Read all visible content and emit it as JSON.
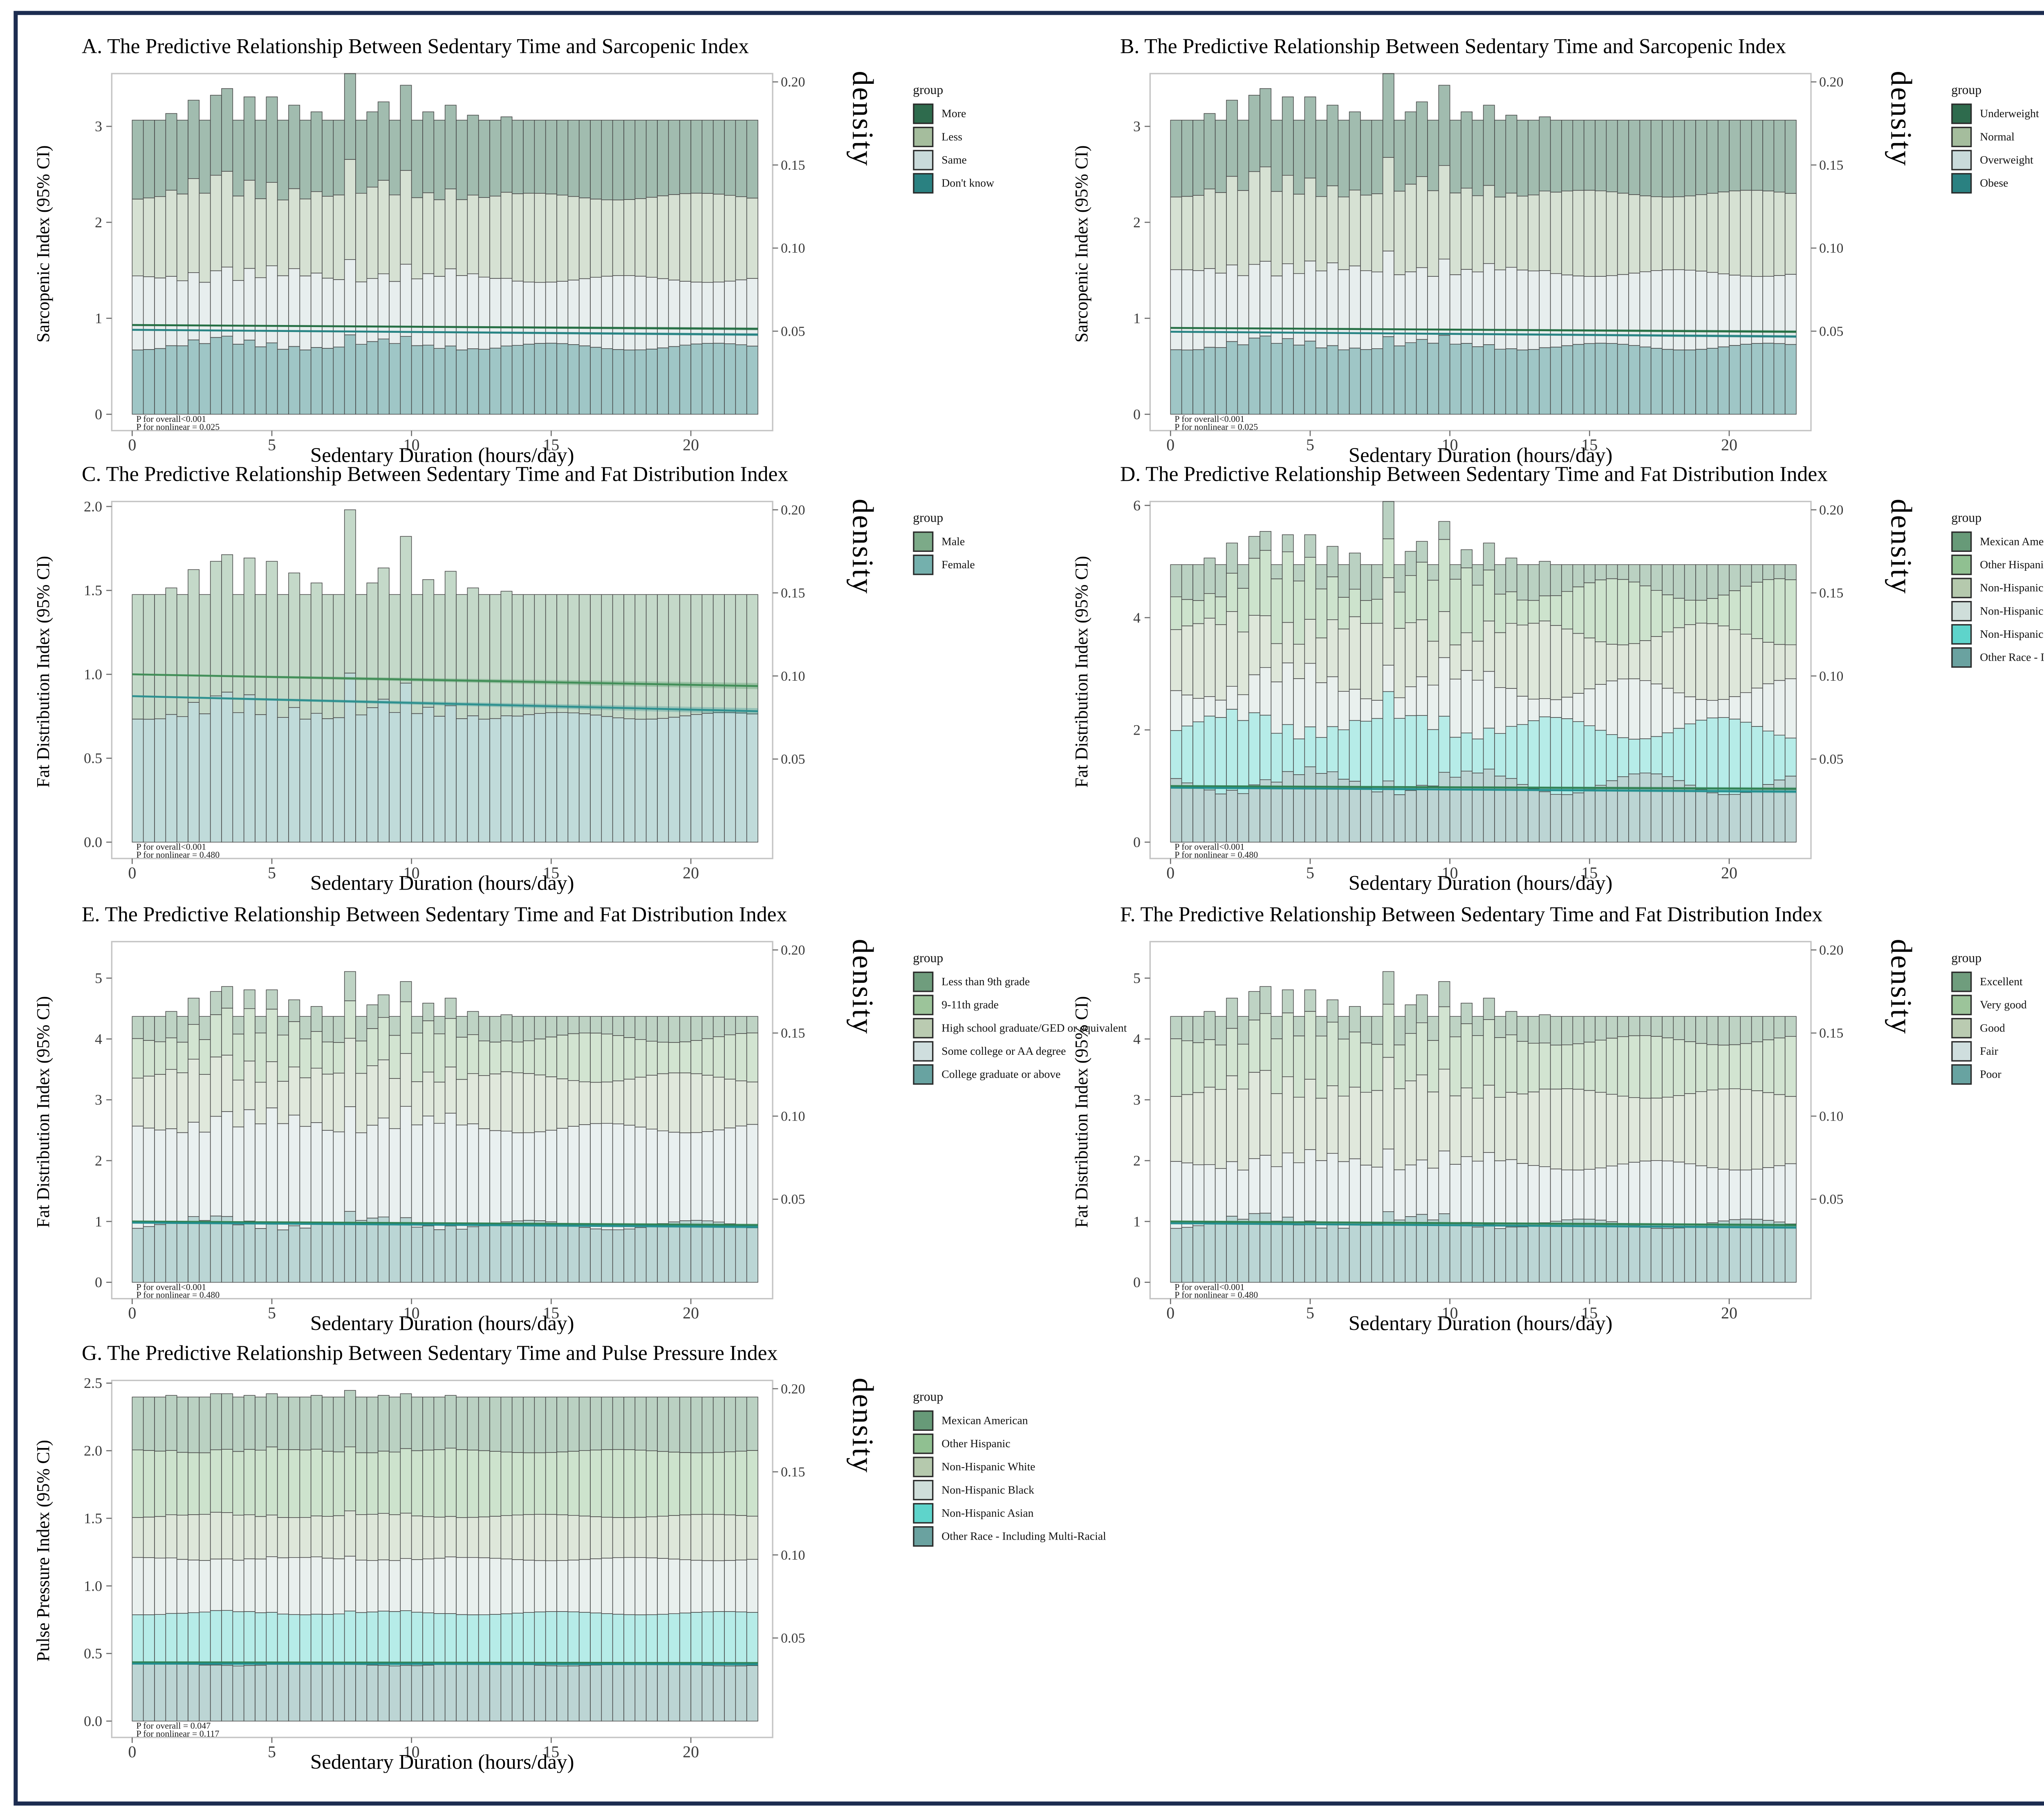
{
  "page": {
    "border_color": "#1c2c50",
    "background": "#ffffff"
  },
  "axis": {
    "x_label": "Sedentary Duration (hours/day)",
    "density_label": "density",
    "legend_title": "group",
    "x_ticks": [
      0,
      5,
      10,
      15,
      20
    ],
    "density_ticks": [
      0.05,
      0.1,
      0.15,
      0.2
    ],
    "x_max_hours": 22.4,
    "density_top": 0.205
  },
  "chart_data": {
    "type": "stacked-histogram-with-trend-lines",
    "panels": [
      {
        "id": "A",
        "grid": {
          "row": 0,
          "col": 0
        },
        "title": "A. The Predictive Relationship Between Sedentary Time and Sarcopenic Index",
        "y_label": "Sarcopenic Index (95% CI)",
        "y_ticks": [
          3,
          2,
          1,
          0
        ],
        "y_decimals": 0,
        "y_max": 3.55,
        "p_overall": "P for overall<0.001",
        "p_nonlinear": "P for nonlinear = 0.025",
        "groups": [
          {
            "label": "More",
            "color": "#2e6b4d"
          },
          {
            "label": "Less",
            "color": "#a5bd9d"
          },
          {
            "label": "Same",
            "color": "#c9dada"
          },
          {
            "label": "Don't know",
            "color": "#2a8181"
          }
        ],
        "stack_fractions": [
          0.26,
          0.28,
          0.23,
          0.23
        ],
        "bars": {
          "base": 0.177,
          "overrides": {
            "3": 0.181,
            "5": 0.189,
            "7": 0.192,
            "8": 0.196,
            "10": 0.191,
            "12": 0.191,
            "14": 0.186,
            "16": 0.182,
            "19": 0.205,
            "21": 0.182,
            "22": 0.188,
            "24": 0.198,
            "26": 0.182,
            "28": 0.186,
            "30": 0.18,
            "33": 0.179
          }
        },
        "jitter": 2.5,
        "seed": 1,
        "trend_lines": [
          {
            "group": "More",
            "color": "#1e6b3e",
            "y_start": 0.93,
            "y_end": 0.89,
            "band_start": 0.8,
            "band_end": 2.2
          },
          {
            "group": "Don't know",
            "color": "#1f8080",
            "y_start": 0.88,
            "y_end": 0.83,
            "band_start": 0.8,
            "band_end": 2.2
          }
        ]
      },
      {
        "id": "B",
        "grid": {
          "row": 0,
          "col": 1
        },
        "title": "B. The Predictive Relationship Between Sedentary Time and Sarcopenic Index",
        "y_label": "Sarcopenic Index (95% CI)",
        "y_ticks": [
          3,
          2,
          1,
          0
        ],
        "y_decimals": 0,
        "y_max": 3.55,
        "p_overall": "P for overall<0.001",
        "p_nonlinear": "P for nonlinear = 0.025",
        "groups": [
          {
            "label": "Underweight",
            "color": "#2e6b4d"
          },
          {
            "label": "Normal",
            "color": "#a5bd9d"
          },
          {
            "label": "Overweight",
            "color": "#c9dada"
          },
          {
            "label": "Obese",
            "color": "#2a8181"
          }
        ],
        "stack_fractions": [
          0.25,
          0.27,
          0.25,
          0.23
        ],
        "bars": {
          "base": 0.177,
          "overrides": {
            "3": 0.181,
            "5": 0.189,
            "7": 0.192,
            "8": 0.196,
            "10": 0.191,
            "12": 0.191,
            "14": 0.186,
            "16": 0.182,
            "19": 0.205,
            "21": 0.182,
            "22": 0.188,
            "24": 0.198,
            "26": 0.182,
            "28": 0.186,
            "30": 0.18,
            "33": 0.179
          }
        },
        "jitter": 2.5,
        "seed": 2,
        "trend_lines": [
          {
            "group": "Underweight",
            "color": "#1e6b3e",
            "y_start": 0.9,
            "y_end": 0.86,
            "band_start": 0.8,
            "band_end": 2.2
          },
          {
            "group": "Obese",
            "color": "#1f8080",
            "y_start": 0.86,
            "y_end": 0.81,
            "band_start": 0.8,
            "band_end": 2.2
          }
        ]
      },
      {
        "id": "C",
        "grid": {
          "row": 1,
          "col": 0
        },
        "title": "C. The Predictive Relationship Between Sedentary Time and Fat Distribution Index",
        "y_label": "Fat Distribution Index (95% CI)",
        "y_ticks": [
          2.0,
          1.5,
          1.0,
          0.5,
          0.0
        ],
        "y_decimals": 1,
        "y_max": 2.03,
        "p_overall": "P for overall<0.001",
        "p_nonlinear": "P for nonlinear = 0.480",
        "groups": [
          {
            "label": "Male",
            "color": "#7caa88"
          },
          {
            "label": "Female",
            "color": "#74b0ad"
          }
        ],
        "stack_fractions": [
          0.49,
          0.51
        ],
        "bars": {
          "base": 0.149,
          "overrides": {
            "3": 0.153,
            "5": 0.164,
            "7": 0.169,
            "8": 0.173,
            "10": 0.171,
            "12": 0.169,
            "14": 0.162,
            "16": 0.156,
            "19": 0.2,
            "21": 0.156,
            "22": 0.165,
            "24": 0.184,
            "26": 0.158,
            "28": 0.163,
            "30": 0.153,
            "33": 0.151
          }
        },
        "jitter": 2.5,
        "seed": 3,
        "trend_lines": [
          {
            "group": "Male",
            "color": "#3f8d55",
            "y_start": 1.0,
            "y_end": 0.93,
            "band_start": 1.0,
            "band_end": 4.5
          },
          {
            "group": "Female",
            "color": "#2a8f8e",
            "y_start": 0.87,
            "y_end": 0.78,
            "band_start": 1.0,
            "band_end": 4.5
          }
        ]
      },
      {
        "id": "D",
        "grid": {
          "row": 1,
          "col": 1
        },
        "title": "D. The Predictive Relationship Between Sedentary Time and Fat Distribution Index",
        "y_label": "Fat Distribution Index (95% CI)",
        "y_ticks": [
          6,
          4,
          2,
          0
        ],
        "y_decimals": 0,
        "y_max": 6.07,
        "p_overall": "P for overall<0.001",
        "p_nonlinear": "P for nonlinear = 0.480",
        "groups": [
          {
            "label": "Mexican American",
            "color": "#679a78"
          },
          {
            "label": "Other Hispanic",
            "color": "#90c091"
          },
          {
            "label": "Non-Hispanic White",
            "color": "#b5c9ad"
          },
          {
            "label": "Non-Hispanic Black",
            "color": "#cfdeda"
          },
          {
            "label": "Non-Hispanic Asian",
            "color": "#5ed4cb"
          },
          {
            "label": "Other Race - Including Multi-Racial",
            "color": "#6aa2a0"
          }
        ],
        "stack_fractions": [
          0.09,
          0.16,
          0.2,
          0.14,
          0.2,
          0.21
        ],
        "bars": {
          "base": 0.167,
          "overrides": {
            "3": 0.171,
            "5": 0.18,
            "7": 0.184,
            "8": 0.187,
            "10": 0.185,
            "12": 0.185,
            "14": 0.178,
            "16": 0.174,
            "19": 0.205,
            "21": 0.175,
            "22": 0.181,
            "24": 0.193,
            "26": 0.176,
            "28": 0.18,
            "30": 0.171,
            "33": 0.169
          }
        },
        "jitter": 8,
        "seed": 4,
        "trend_lines": [
          {
            "group": "Mexican American",
            "color": "#2e8050",
            "y_start": 1.0,
            "y_end": 0.95,
            "band_start": 0.8,
            "band_end": 2.4
          },
          {
            "group": "Other Race - Including Multi-Racial",
            "color": "#1f8e8e",
            "y_start": 0.97,
            "y_end": 0.9,
            "band_start": 0.8,
            "band_end": 2.4
          }
        ]
      },
      {
        "id": "E",
        "grid": {
          "row": 2,
          "col": 0
        },
        "title": "E. The Predictive Relationship Between Sedentary Time and Fat Distribution Index",
        "y_label": "Fat Distribution Index (95% CI)",
        "y_ticks": [
          5,
          4,
          3,
          2,
          1,
          0
        ],
        "y_decimals": 0,
        "y_max": 5.6,
        "p_overall": "P for overall<0.001",
        "p_nonlinear": "P for nonlinear = 0.480",
        "groups": [
          {
            "label": "Less than 9th grade",
            "color": "#6f9d7d"
          },
          {
            "label": "9-11th grade",
            "color": "#9cc49a"
          },
          {
            "label": "High school graduate/GED or equivalent",
            "color": "#bacbb1"
          },
          {
            "label": "Some college or AA degree",
            "color": "#cfdede"
          },
          {
            "label": "College graduate or above",
            "color": "#68a3a1"
          }
        ],
        "stack_fractions": [
          0.08,
          0.15,
          0.19,
          0.365,
          0.215
        ],
        "bars": {
          "base": 0.16,
          "overrides": {
            "3": 0.163,
            "5": 0.171,
            "7": 0.175,
            "8": 0.178,
            "10": 0.176,
            "12": 0.176,
            "14": 0.17,
            "16": 0.166,
            "19": 0.187,
            "21": 0.167,
            "22": 0.173,
            "24": 0.181,
            "26": 0.168,
            "28": 0.171,
            "30": 0.163,
            "33": 0.161
          }
        },
        "jitter": 3.5,
        "seed": 5,
        "trend_lines": [
          {
            "group": "Less than 9th grade",
            "color": "#2e8050",
            "y_start": 1.0,
            "y_end": 0.94,
            "band_start": 0.8,
            "band_end": 2.2
          },
          {
            "group": "College graduate or above",
            "color": "#1f8e8e",
            "y_start": 0.98,
            "y_end": 0.91,
            "band_start": 0.8,
            "band_end": 2.2
          }
        ]
      },
      {
        "id": "F",
        "grid": {
          "row": 2,
          "col": 1
        },
        "title": "F. The Predictive Relationship Between Sedentary Time and Fat Distribution Index",
        "y_label": "Fat Distribution Index (95% CI)",
        "y_ticks": [
          5,
          4,
          3,
          2,
          1,
          0
        ],
        "y_decimals": 0,
        "y_max": 5.6,
        "p_overall": "P for overall<0.001",
        "p_nonlinear": "P for nonlinear = 0.480",
        "groups": [
          {
            "label": "Excellent",
            "color": "#6f9d7d"
          },
          {
            "label": "Very good",
            "color": "#9cc49a"
          },
          {
            "label": "Good",
            "color": "#bacbb1"
          },
          {
            "label": "Fair",
            "color": "#cfdede"
          },
          {
            "label": "Poor",
            "color": "#68a3a1"
          }
        ],
        "stack_fractions": [
          0.09,
          0.2,
          0.27,
          0.22,
          0.22
        ],
        "bars": {
          "base": 0.16,
          "overrides": {
            "3": 0.163,
            "5": 0.171,
            "7": 0.175,
            "8": 0.178,
            "10": 0.176,
            "12": 0.176,
            "14": 0.17,
            "16": 0.166,
            "19": 0.187,
            "21": 0.167,
            "22": 0.173,
            "24": 0.181,
            "26": 0.168,
            "28": 0.171,
            "30": 0.163,
            "33": 0.161
          }
        },
        "jitter": 3.5,
        "seed": 6,
        "trend_lines": [
          {
            "group": "Excellent",
            "color": "#2e8050",
            "y_start": 1.0,
            "y_end": 0.94,
            "band_start": 0.8,
            "band_end": 2.2
          },
          {
            "group": "Poor",
            "color": "#1f8e8e",
            "y_start": 0.97,
            "y_end": 0.9,
            "band_start": 0.8,
            "band_end": 2.2
          }
        ]
      },
      {
        "id": "G",
        "grid": {
          "row": 3,
          "col": 0
        },
        "title": "G. The Predictive Relationship Between Sedentary Time and Pulse Pressure Index",
        "y_label": "Pulse Pressure Index (95% CI)",
        "y_ticks": [
          2.5,
          2.0,
          1.5,
          1.0,
          0.5,
          0.0
        ],
        "y_decimals": 1,
        "y_max": 2.52,
        "p_overall": "P for overall = 0.047",
        "p_nonlinear": "P for nonlinear = 0.117",
        "groups": [
          {
            "label": "Mexican American",
            "color": "#679a78"
          },
          {
            "label": "Other Hispanic",
            "color": "#90c091"
          },
          {
            "label": "Non-Hispanic White",
            "color": "#b5c9ad"
          },
          {
            "label": "Non-Hispanic Black",
            "color": "#cfdeda"
          },
          {
            "label": "Non-Hispanic Asian",
            "color": "#5ed4cb"
          },
          {
            "label": "Other Race - Including Multi-Racial",
            "color": "#6aa2a0"
          }
        ],
        "stack_fractions": [
          0.167,
          0.2,
          0.133,
          0.167,
          0.158,
          0.175
        ],
        "bars": {
          "base": 0.195,
          "overrides": {
            "3": 0.196,
            "7": 0.197,
            "8": 0.197,
            "10": 0.196,
            "12": 0.197,
            "16": 0.196,
            "19": 0.199,
            "22": 0.196,
            "24": 0.197,
            "28": 0.196
          }
        },
        "jitter": 1.2,
        "seed": 7,
        "trend_lines": [
          {
            "group": "Mexican American",
            "color": "#2e8050",
            "y_start": 0.435,
            "y_end": 0.43,
            "band_start": 0.6,
            "band_end": 1.0
          },
          {
            "group": "Other Race - Including Multi-Racial",
            "color": "#1f8e8e",
            "y_start": 0.425,
            "y_end": 0.42,
            "band_start": 1.0,
            "band_end": 1.6
          }
        ]
      }
    ]
  }
}
